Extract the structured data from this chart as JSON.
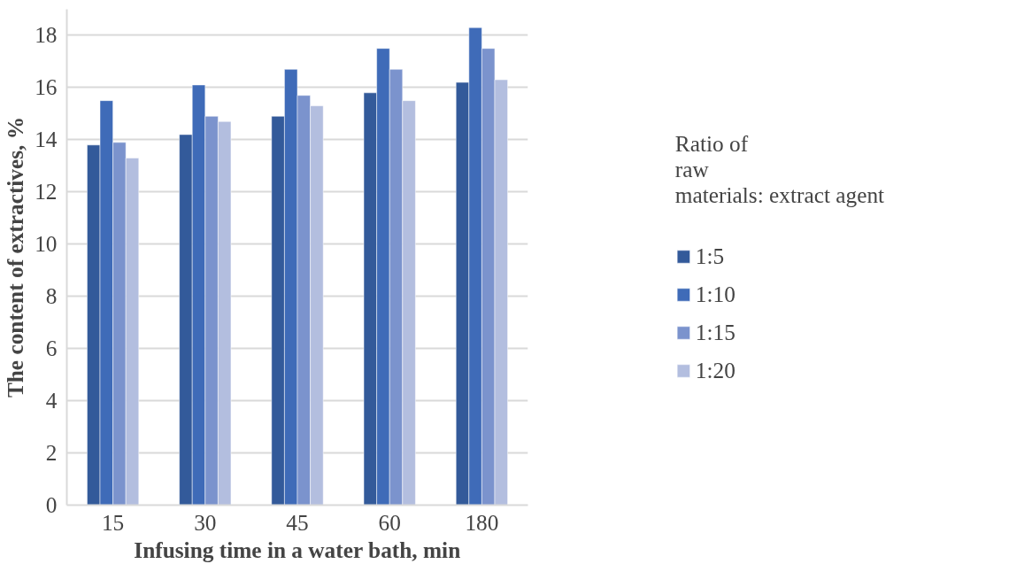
{
  "chart_data": {
    "type": "bar",
    "xlabel": "Infusing time in a water bath, min",
    "ylabel": "The content of extractives, %",
    "legend_title": "Ratio of raw materials: extract agent",
    "categories": [
      "15",
      "30",
      "45",
      "60",
      "180"
    ],
    "series": [
      {
        "name": "1:5",
        "color": "#335a9a",
        "values": [
          13.8,
          14.2,
          14.9,
          15.8,
          16.2
        ]
      },
      {
        "name": "1:10",
        "color": "#3f6bb8",
        "values": [
          15.5,
          16.1,
          16.7,
          17.5,
          18.3
        ]
      },
      {
        "name": "1:15",
        "color": "#7b93cd",
        "values": [
          13.9,
          14.9,
          15.7,
          16.7,
          17.5
        ]
      },
      {
        "name": "1:20",
        "color": "#b3bedf",
        "values": [
          13.3,
          14.7,
          15.3,
          15.5,
          16.3
        ]
      }
    ],
    "ylim": [
      0,
      19
    ],
    "yticks": [
      0,
      2,
      4,
      6,
      8,
      10,
      12,
      14,
      16,
      18
    ],
    "grid": "y",
    "legend": "right"
  }
}
